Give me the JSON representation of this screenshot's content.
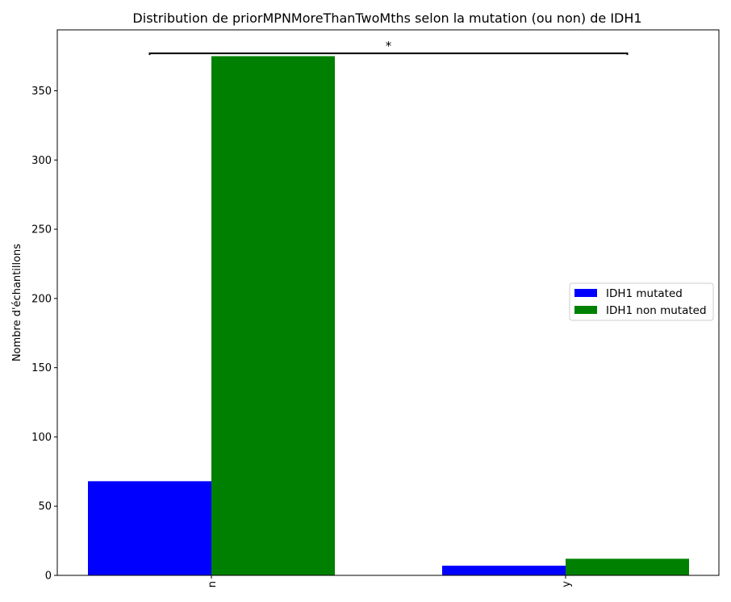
{
  "chart_data": {
    "type": "bar",
    "title": "Distribution de priorMPNMoreThanTwoMths selon la mutation (ou non) de IDH1",
    "xlabel": "",
    "ylabel": "Nombre d'échantillons",
    "categories": [
      "n",
      "y"
    ],
    "series": [
      {
        "name": "IDH1 mutated",
        "values": [
          68,
          7
        ],
        "color": "#0000ff"
      },
      {
        "name": "IDH1 non mutated",
        "values": [
          375,
          12
        ],
        "color": "#008000"
      }
    ],
    "ylim": [
      0,
      394
    ],
    "yticks": [
      0,
      50,
      100,
      150,
      200,
      250,
      300,
      350
    ],
    "grid": false,
    "legend_position": "center-right",
    "annotation": {
      "text": "*",
      "y": 377,
      "span": [
        "n",
        "y"
      ]
    }
  }
}
